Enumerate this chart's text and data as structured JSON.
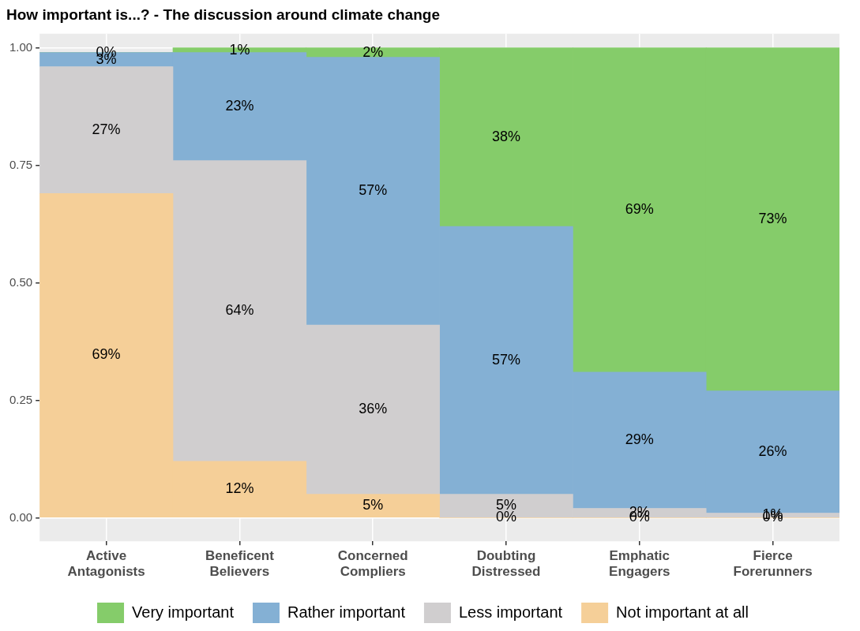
{
  "chart_data": {
    "type": "bar",
    "stacked": true,
    "title": "How important is...? - The discussion around climate change",
    "categories": [
      "Active Antagonists",
      "Beneficent Believers",
      "Concerned Compliers",
      "Doubting Distressed",
      "Emphatic Engagers",
      "Fierce Forerunners"
    ],
    "series": [
      {
        "name": "Not important at all",
        "color": "#f5cf98",
        "values": [
          0.69,
          0.12,
          0.05,
          0.0,
          0.0,
          0.0
        ],
        "value_labels": [
          "69%",
          "12%",
          "5%",
          "0%",
          "0%",
          "0%"
        ]
      },
      {
        "name": "Less important",
        "color": "#d0cecf",
        "values": [
          0.27,
          0.64,
          0.36,
          0.05,
          0.02,
          0.01
        ],
        "value_labels": [
          "27%",
          "64%",
          "36%",
          "5%",
          "2%",
          "1%"
        ]
      },
      {
        "name": "Rather important",
        "color": "#84b0d4",
        "values": [
          0.03,
          0.23,
          0.57,
          0.57,
          0.29,
          0.26
        ],
        "value_labels": [
          "3%",
          "23%",
          "57%",
          "57%",
          "29%",
          "26%"
        ]
      },
      {
        "name": "Very important",
        "color": "#85cc6a",
        "values": [
          0.0,
          0.01,
          0.02,
          0.38,
          0.69,
          0.73
        ],
        "value_labels": [
          "0%",
          "1%",
          "2%",
          "38%",
          "69%",
          "73%"
        ]
      }
    ],
    "ylim": [
      -0.05,
      1.03
    ],
    "yticks": [
      {
        "value": 0,
        "label": "0.00"
      },
      {
        "value": 0.25,
        "label": "0.25"
      },
      {
        "value": 0.5,
        "label": "0.50"
      },
      {
        "value": 0.75,
        "label": "0.75"
      },
      {
        "value": 1,
        "label": "1.00"
      }
    ],
    "grid": true,
    "legend": "bottom"
  }
}
